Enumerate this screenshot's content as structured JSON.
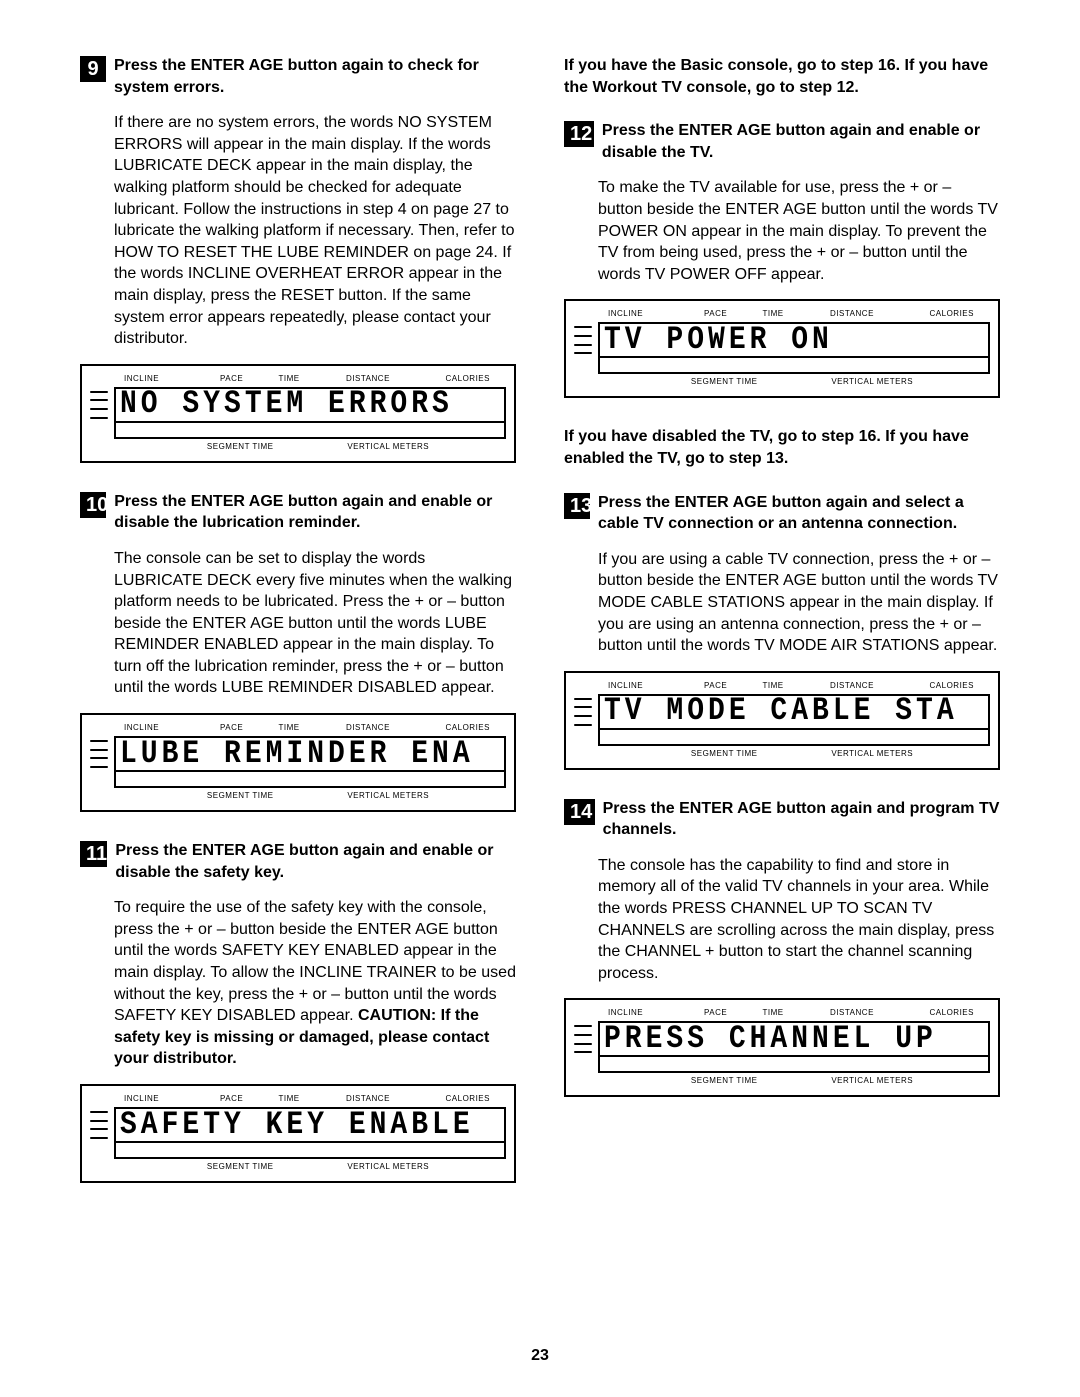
{
  "page_number": "23",
  "lcd_labels": {
    "incline": "INCLINE",
    "pace": "PACE",
    "time": "TIME",
    "distance": "DISTANCE",
    "calories": "CALORIES",
    "segment_time": "SEGMENT TIME",
    "vertical_meters": "VERTICAL METERS"
  },
  "left": {
    "step9": {
      "num": "9",
      "title": "Press the ENTER AGE button again to check for system errors.",
      "body": "If there are no system errors, the words NO SYSTEM ERRORS will appear in the main display. If the words LUBRICATE DECK appear in the main display, the walking platform should be checked for adequate lubricant. Follow the instructions in step 4 on page 27 to lubricate the walking platform if necessary. Then, refer to HOW TO RESET THE LUBE REMINDER on page 24. If the words INCLINE OVERHEAT ERROR appear in the main display, press the RESET button. If the same system error appears repeatedly, please contact your distributor.",
      "lcd": "NO  SYSTEM  ERRORS"
    },
    "step10": {
      "num": "10",
      "title": "Press the ENTER AGE button again and enable or disable the lubrication reminder.",
      "body": "The console can be set to display the words LUBRICATE DECK every five minutes when the walking platform needs to be lubricated. Press the + or – button beside the ENTER AGE button until the words LUBE REMINDER ENABLED appear in the main display. To turn off the lubrication reminder, press the + or – button until the words LUBE REMINDER DISABLED appear.",
      "lcd": "LUBE  REMINDER  ENA"
    },
    "step11": {
      "num": "11",
      "title": "Press the ENTER AGE button again and enable or disable the safety key.",
      "body_a": "To require the use of the safety key with the console, press the + or – button beside the ENTER AGE button until the words SAFETY KEY ENABLED appear in the main display. To allow the INCLINE TRAINER to be used without the key, press the + or – button until the words SAFETY KEY DISABLED appear. ",
      "body_b": "CAUTION: If the safety key is missing or damaged, please contact your distributor.",
      "lcd": "SAFETY  KEY  ENABLE"
    }
  },
  "right": {
    "intro": "If you have the Basic console, go to step 16. If you have the Workout TV console, go to step 12.",
    "step12": {
      "num": "12",
      "title": "Press the ENTER AGE button again and enable or disable the TV.",
      "body": "To make the TV available for use, press the + or – button beside the ENTER AGE button until the words TV POWER ON appear in the main display. To prevent the TV from being used, press the + or – button until the words TV POWER OFF appear.",
      "lcd": "TV   POWER  ON"
    },
    "mid": "If you have disabled the TV, go to step 16. If you have enabled the TV, go to step 13.",
    "step13": {
      "num": "13",
      "title": "Press the ENTER AGE button again and  select a cable TV connection or an antenna connection.",
      "body": "If you are using a cable TV connection, press the + or – button beside the ENTER AGE button until the words TV MODE CABLE STATIONS appear in the main display. If you are using an antenna connection, press the + or – button until the words TV MODE AIR STATIONS appear.",
      "lcd": "TV   MODE  CABLE  STA"
    },
    "step14": {
      "num": "14",
      "title": "Press the ENTER AGE button again and program TV channels.",
      "body": "The console has the capability to find and store in memory all of the valid TV channels in your area. While the words PRESS CHANNEL UP TO SCAN TV CHANNELS are scrolling across the main display, press the CHANNEL + button to start the channel scanning process.",
      "lcd": "PRESS  CHANNEL   UP"
    }
  }
}
